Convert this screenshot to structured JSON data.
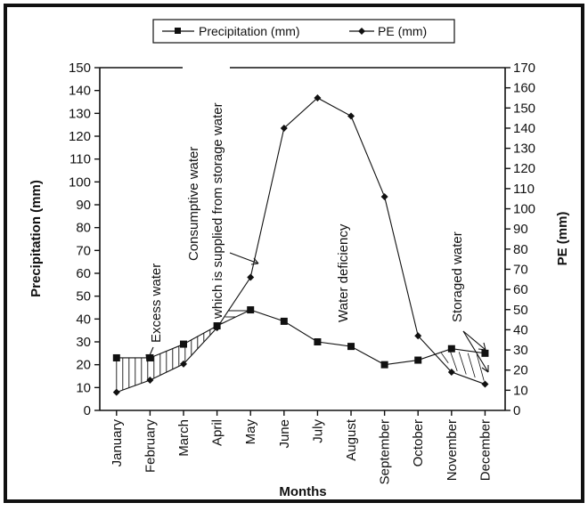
{
  "chart_data": {
    "type": "line",
    "xlabel": "Months",
    "ylabel_left": "Precipitation (mm)",
    "ylabel_right": "PE (mm)",
    "ylim_left": [
      0,
      150
    ],
    "ylim_right": [
      0,
      170
    ],
    "yticks_left": [
      0,
      10,
      20,
      30,
      40,
      50,
      60,
      70,
      80,
      90,
      100,
      110,
      120,
      130,
      140,
      150
    ],
    "yticks_right": [
      0,
      10,
      20,
      30,
      40,
      50,
      60,
      70,
      80,
      90,
      100,
      110,
      120,
      130,
      140,
      150,
      160,
      170
    ],
    "categories": [
      "January",
      "February",
      "March",
      "April",
      "May",
      "June",
      "July",
      "August",
      "September",
      "October",
      "November",
      "December"
    ],
    "series": [
      {
        "name": "Precipitation (mm)",
        "axis": "left",
        "marker": "square",
        "values": [
          23,
          23,
          29,
          37,
          44,
          39,
          30,
          28,
          20,
          22,
          27,
          25
        ]
      },
      {
        "name": "PE (mm)",
        "axis": "right",
        "marker": "diamond",
        "values": [
          9,
          15,
          23,
          41,
          66,
          140,
          155,
          146,
          106,
          37,
          19,
          13
        ]
      }
    ],
    "annotations": [
      "Excess water",
      "Consumptive water",
      "which is supplied from storage water",
      "Water deficiency",
      "Storaged water"
    ],
    "legend": "top-center",
    "grid": false
  }
}
